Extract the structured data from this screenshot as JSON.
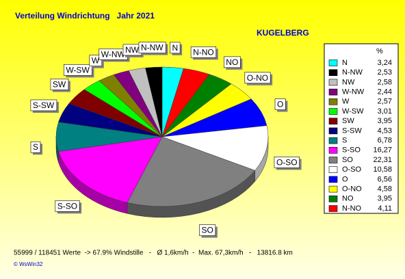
{
  "chart_data": {
    "type": "pie",
    "title": "Verteilung Windrichtung   Jahr 2021",
    "subtitle": "KUGELBERG",
    "legend_header": "%",
    "categories": [
      "N",
      "N-NW",
      "NW",
      "W-NW",
      "W",
      "W-SW",
      "SW",
      "S-SW",
      "S",
      "S-SO",
      "SO",
      "O-SO",
      "O",
      "O-NO",
      "NO",
      "N-NO"
    ],
    "values": [
      3.24,
      2.53,
      2.58,
      2.44,
      2.57,
      3.01,
      3.95,
      4.53,
      6.78,
      16.27,
      22.31,
      10.58,
      6.56,
      4.58,
      3.95,
      4.11
    ],
    "value_labels": [
      "3,24",
      "2,53",
      "2,58",
      "2,44",
      "2,57",
      "3,01",
      "3,95",
      "4,53",
      "6,78",
      "16,27",
      "22,31",
      "10,58",
      "6,56",
      "4,58",
      "3,95",
      "4,11"
    ],
    "colors": [
      "#00ffff",
      "#000000",
      "#c0c0c0",
      "#800080",
      "#808000",
      "#00ff00",
      "#800000",
      "#000080",
      "#008080",
      "#ff00ff",
      "#808080",
      "#ffffff",
      "#0000ff",
      "#ffff00",
      "#008000",
      "#ff0000"
    ],
    "direction": "counterclockwise-in-list",
    "footer": "55999 / 118451 Werte  -> 67.9% Windstille   -   Ø 1,6km/h  -  Max. 67,3km/h   -   13816.8 km",
    "credit": "© WsWin32"
  }
}
